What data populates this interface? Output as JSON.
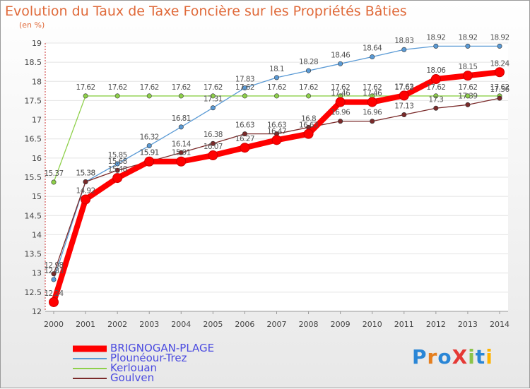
{
  "title": "Evolution du Taux de Taxe Foncière sur les Propriétés Bâties",
  "unit": "(en %)",
  "logo_text": "ProXiti",
  "chart_data": {
    "type": "line",
    "title": "Evolution du Taux de Taxe Foncière sur les Propriétés Bâties",
    "ylabel": "(en %)",
    "xlabel": "",
    "x": [
      "2000",
      "2001",
      "2002",
      "2003",
      "2004",
      "2005",
      "2006",
      "2007",
      "2008",
      "2009",
      "2010",
      "2011",
      "2012",
      "2013",
      "2014"
    ],
    "ylim": [
      12,
      19
    ],
    "yticks": [
      "12",
      "12.5",
      "13",
      "13.5",
      "14",
      "14.5",
      "15",
      "15.5",
      "16",
      "16.5",
      "17",
      "17.5",
      "18",
      "18.5",
      "19"
    ],
    "legend_position": "bottom-left",
    "series": [
      {
        "name": "BRIGNOGAN-PLAGE",
        "color": "#ff0000",
        "values": [
          12.24,
          14.92,
          15.48,
          15.91,
          15.91,
          16.07,
          16.27,
          16.47,
          16.63,
          17.46,
          17.46,
          17.63,
          18.06,
          18.15,
          18.24
        ]
      },
      {
        "name": "Plounéour-Trez",
        "color": "#5a9ad5",
        "values": [
          12.83,
          15.38,
          15.85,
          16.32,
          16.81,
          17.31,
          17.83,
          18.1,
          18.28,
          18.46,
          18.64,
          18.83,
          18.92,
          18.92,
          18.92
        ]
      },
      {
        "name": "Kerlouan",
        "color": "#8ed04a",
        "values": [
          15.37,
          17.62,
          17.62,
          17.62,
          17.62,
          17.62,
          17.62,
          17.62,
          17.62,
          17.62,
          17.62,
          17.62,
          17.62,
          17.62,
          17.62
        ]
      },
      {
        "name": "Goulven",
        "color": "#7a2a2a",
        "values": [
          12.98,
          15.38,
          15.68,
          15.91,
          16.14,
          16.38,
          16.63,
          16.63,
          16.8,
          16.96,
          16.96,
          17.13,
          17.3,
          17.39,
          17.56
        ]
      }
    ]
  }
}
